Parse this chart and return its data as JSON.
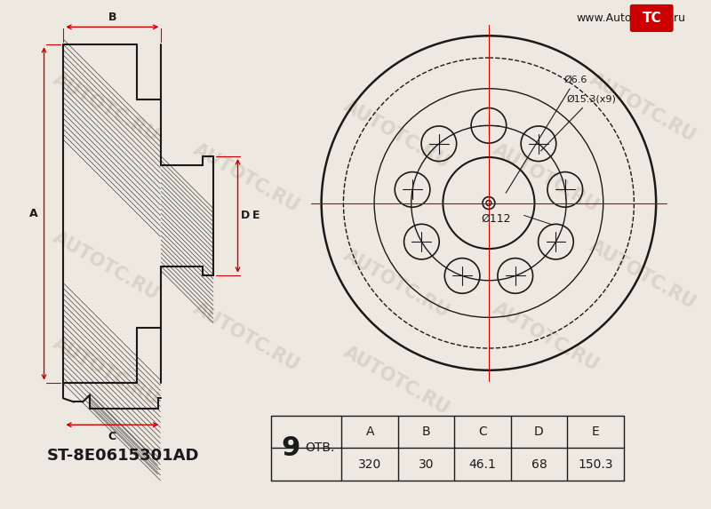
{
  "bg_color": "#ede8e0",
  "line_color": "#1a1a1a",
  "red_color": "#cc0000",
  "title_part": "ST-8E0615301AD",
  "holes_count": "9",
  "holes_label": "ОТВ.",
  "dim_A": "320",
  "dim_B": "30",
  "dim_C": "46.1",
  "dim_D": "68",
  "dim_E": "150.3",
  "label_A": "A",
  "label_B": "B",
  "label_C": "C",
  "label_D": "D",
  "label_E": "E",
  "dia_6_6": "Ø6.6",
  "dia_15_3": "Ø15.3(x9)",
  "dia_112": "Ø112",
  "website_left": "www.Auto",
  "website_tc": "TC",
  "website_right": ".ru",
  "watermark": "AUTOTC.RU"
}
